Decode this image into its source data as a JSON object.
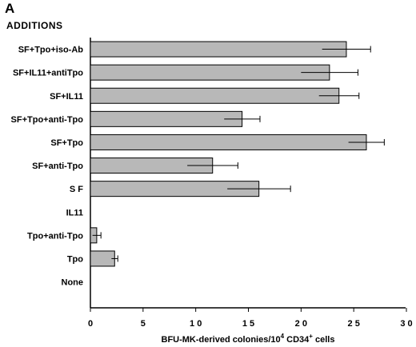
{
  "chart_data": {
    "type": "bar",
    "orientation": "horizontal",
    "panel_label": "A",
    "category_heading": "ADDITIONS",
    "categories": [
      "SF+Tpo+iso-Ab",
      "SF+IL11+antiTpo",
      "SF+IL11",
      "SF+Tpo+anti-Tpo",
      "SF+Tpo",
      "SF+anti-Tpo",
      "S F",
      "IL11",
      "Tpo+anti-Tpo",
      "Tpo",
      "None"
    ],
    "values": [
      24.3,
      22.7,
      23.6,
      14.4,
      26.2,
      11.6,
      16.0,
      0,
      0.6,
      2.3,
      0
    ],
    "errors": [
      2.3,
      2.7,
      1.9,
      1.7,
      1.7,
      2.4,
      3.0,
      0,
      0.4,
      0.3,
      0
    ],
    "xlim": [
      0,
      30
    ],
    "xticks": [
      "0",
      "5",
      "1 0",
      "1 5",
      "2 0",
      "2 5",
      "3 0"
    ],
    "xtick_values": [
      0,
      5,
      10,
      15,
      20,
      25,
      30
    ],
    "xlabel_main": "BFU-MK-derived  colonies/10",
    "xlabel_sup": "4",
    "xlabel_tail": "  CD34",
    "xlabel_sup2": "+",
    "xlabel_end": "  cells",
    "bar_color": "#b8b8b8"
  }
}
